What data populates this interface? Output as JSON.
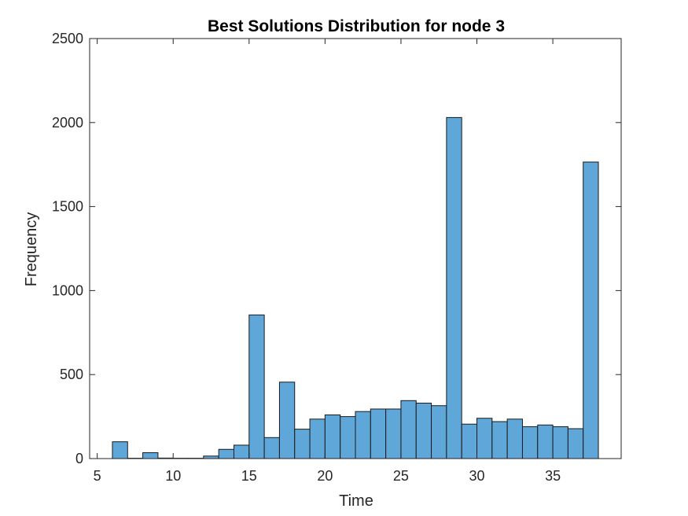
{
  "chart_data": {
    "type": "bar",
    "title": "Best Solutions Distribution for node 3",
    "xlabel": "Time",
    "ylabel": "Frequency",
    "xlim": [
      4.5,
      39.5
    ],
    "ylim": [
      0,
      2500
    ],
    "xticks": [
      5,
      10,
      15,
      20,
      25,
      30,
      35
    ],
    "yticks": [
      0,
      500,
      1000,
      1500,
      2000,
      2500
    ],
    "bin_width": 1,
    "bin_edges_start": 6,
    "values": [
      100,
      2,
      35,
      3,
      2,
      2,
      15,
      55,
      80,
      855,
      125,
      455,
      175,
      235,
      260,
      250,
      280,
      295,
      295,
      345,
      330,
      315,
      2030,
      205,
      240,
      220,
      235,
      190,
      200,
      190,
      178,
      1765
    ],
    "bar_color": "#5fa7d9",
    "grid": false,
    "legend": "none"
  }
}
